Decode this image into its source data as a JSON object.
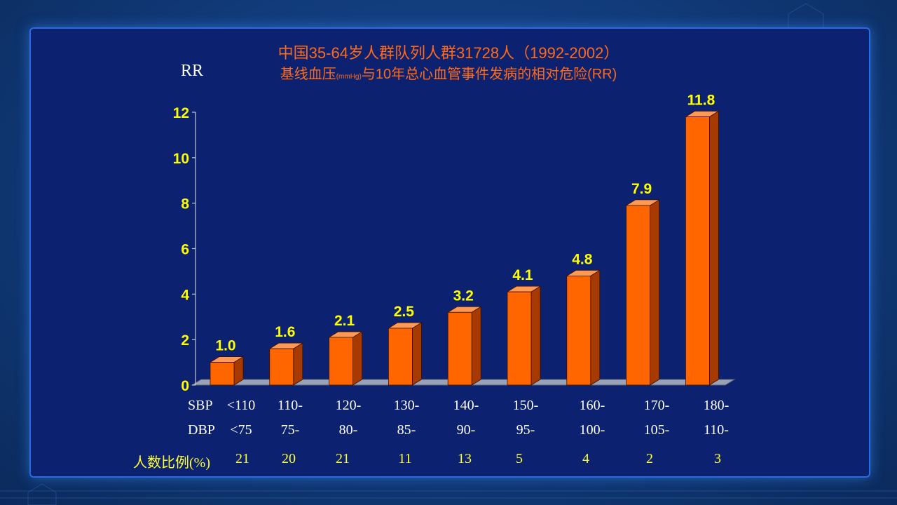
{
  "chart_data": {
    "type": "bar",
    "title": "中国35-64岁人群队列人群31728人（1992-2002）",
    "subtitle_main": "基线血压",
    "subtitle_unit": "(mmHg)",
    "subtitle_rest": "与10年总心血管事件发病的相对危险(RR)",
    "ylabel": "RR",
    "ylim": [
      0,
      12
    ],
    "yticks": [
      "0",
      "2",
      "4",
      "6",
      "8",
      "10",
      "12"
    ],
    "values": [
      1.0,
      1.6,
      2.1,
      2.5,
      3.2,
      4.1,
      4.8,
      7.9,
      11.8
    ],
    "value_labels": [
      "1.0",
      "1.6",
      "2.1",
      "2.5",
      "3.2",
      "4.1",
      "4.8",
      "7.9",
      "11.8"
    ],
    "sbp_label": "SBP",
    "sbp": [
      "<110",
      "110-",
      "120-",
      "130-",
      "140-",
      "150-",
      "160-",
      "170-",
      "180-"
    ],
    "dbp_label": "DBP",
    "dbp": [
      "<75",
      "75-",
      "80-",
      "85-",
      "90-",
      "95-",
      "100-",
      "105-",
      "110-"
    ],
    "percent_label": "人数比例(%)",
    "percent": [
      "21",
      "20",
      "21",
      "11",
      "13",
      "5",
      "4",
      "2",
      "3"
    ],
    "bar_color": "#ff6600",
    "label_color": "#ffff00",
    "grid": false
  }
}
